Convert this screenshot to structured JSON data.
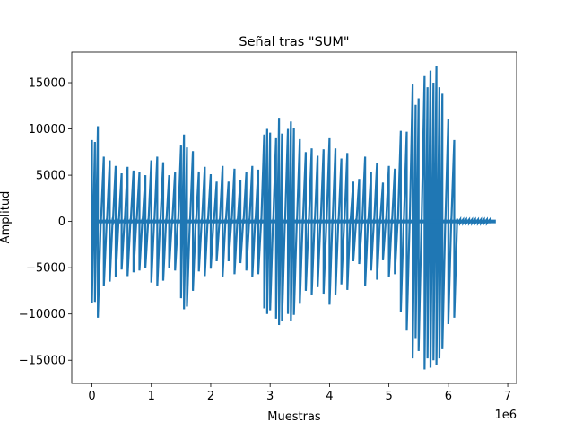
{
  "chart_data": {
    "type": "line",
    "title": "Señal tras \"SUM\"",
    "xlabel": "Muestras",
    "ylabel": "Amplitud",
    "x_offset_text": "1e6",
    "xlim": [
      -0.34,
      7.15
    ],
    "ylim": [
      -17500,
      18300
    ],
    "x_ticks": [
      0,
      1,
      2,
      3,
      4,
      5,
      6,
      7
    ],
    "x_tick_labels": [
      "0",
      "1",
      "2",
      "3",
      "4",
      "5",
      "6",
      "7"
    ],
    "y_ticks": [
      -15000,
      -10000,
      -5000,
      0,
      5000,
      10000,
      15000
    ],
    "y_tick_labels": [
      "−15000",
      "−10000",
      "−5000",
      "0",
      "5000",
      "10000",
      "15000"
    ],
    "grid": false,
    "line_color": "#1f77b4",
    "series": [
      {
        "name": "",
        "x": [
          0.0,
          0.05,
          0.1,
          0.15,
          0.2,
          0.25,
          0.3,
          0.35,
          0.4,
          0.45,
          0.5,
          0.55,
          0.6,
          0.65,
          0.7,
          0.75,
          0.8,
          0.85,
          0.9,
          0.95,
          1.0,
          1.05,
          1.1,
          1.15,
          1.2,
          1.25,
          1.3,
          1.35,
          1.4,
          1.45,
          1.5,
          1.55,
          1.6,
          1.65,
          1.7,
          1.75,
          1.8,
          1.85,
          1.9,
          1.95,
          2.0,
          2.05,
          2.1,
          2.15,
          2.2,
          2.25,
          2.3,
          2.35,
          2.4,
          2.45,
          2.5,
          2.55,
          2.6,
          2.65,
          2.7,
          2.75,
          2.8,
          2.85,
          2.9,
          2.95,
          3.0,
          3.05,
          3.1,
          3.15,
          3.2,
          3.25,
          3.3,
          3.35,
          3.4,
          3.45,
          3.5,
          3.55,
          3.6,
          3.65,
          3.7,
          3.75,
          3.8,
          3.85,
          3.9,
          3.95,
          4.0,
          4.05,
          4.1,
          4.15,
          4.2,
          4.25,
          4.3,
          4.35,
          4.4,
          4.45,
          4.5,
          4.55,
          4.6,
          4.65,
          4.7,
          4.75,
          4.8,
          4.85,
          4.9,
          4.95,
          5.0,
          5.05,
          5.1,
          5.15,
          5.2,
          5.25,
          5.3,
          5.35,
          5.4,
          5.45,
          5.5,
          5.55,
          5.6,
          5.65,
          5.7,
          5.75,
          5.8,
          5.85,
          5.9,
          5.95,
          6.0,
          6.05,
          6.1,
          6.15,
          6.2,
          6.25,
          6.3,
          6.35,
          6.4,
          6.45,
          6.5,
          6.55,
          6.6,
          6.65,
          6.7,
          6.75,
          6.8
        ],
        "max": [
          8800,
          8600,
          10300,
          300,
          7000,
          300,
          6600,
          400,
          6000,
          300,
          5200,
          300,
          5900,
          300,
          5500,
          300,
          5300,
          300,
          5000,
          300,
          6600,
          300,
          7000,
          300,
          6400,
          300,
          5000,
          300,
          5300,
          300,
          8200,
          9400,
          8000,
          300,
          7600,
          300,
          5400,
          300,
          5900,
          300,
          5100,
          300,
          4300,
          300,
          6000,
          300,
          4300,
          300,
          5700,
          300,
          4500,
          300,
          5300,
          300,
          6000,
          300,
          5600,
          300,
          9400,
          10000,
          9600,
          300,
          9000,
          11200,
          9500,
          300,
          10000,
          10800,
          10100,
          300,
          8900,
          300,
          7500,
          300,
          7900,
          300,
          7100,
          300,
          7800,
          300,
          9000,
          300,
          7900,
          300,
          6800,
          300,
          7400,
          300,
          4300,
          300,
          4600,
          300,
          7000,
          300,
          5300,
          300,
          6300,
          300,
          4200,
          300,
          6000,
          300,
          5700,
          300,
          9800,
          300,
          9700,
          300,
          14800,
          12600,
          13300,
          300,
          15700,
          14500,
          16300,
          15000,
          16800,
          14500,
          13800,
          300,
          11100,
          300,
          8800,
          300,
          200,
          200,
          200,
          200,
          200,
          200,
          200,
          200,
          200,
          200,
          200
        ],
        "min": [
          -8800,
          -8700,
          -10400,
          -300,
          -7000,
          -300,
          -6500,
          -400,
          -6000,
          -300,
          -5200,
          -300,
          -5900,
          -300,
          -5500,
          -300,
          -5300,
          -300,
          -5000,
          -300,
          -6600,
          -300,
          -7000,
          -300,
          -6400,
          -300,
          -5000,
          -300,
          -5300,
          -300,
          -8300,
          -9500,
          -9200,
          -300,
          -7500,
          -300,
          -5400,
          -300,
          -5900,
          -300,
          -5100,
          -300,
          -4300,
          -300,
          -6000,
          -300,
          -4300,
          -300,
          -5700,
          -300,
          -4500,
          -300,
          -5300,
          -300,
          -6000,
          -300,
          -5700,
          -300,
          -9400,
          -10000,
          -9600,
          -300,
          -10500,
          -11200,
          -10800,
          -300,
          -10000,
          -10800,
          -10100,
          -300,
          -8900,
          -300,
          -7500,
          -300,
          -7900,
          -300,
          -7100,
          -300,
          -7800,
          -300,
          -9000,
          -300,
          -7900,
          -300,
          -6800,
          -300,
          -7400,
          -300,
          -4300,
          -300,
          -4600,
          -300,
          -7000,
          -300,
          -5300,
          -300,
          -6300,
          -300,
          -4200,
          -300,
          -6000,
          -300,
          -5700,
          -300,
          -9800,
          -300,
          -11800,
          -300,
          -14800,
          -12600,
          -14000,
          -300,
          -16000,
          -14800,
          -15800,
          -15000,
          -15500,
          -14800,
          -13800,
          -300,
          -11100,
          -300,
          -10400,
          -300,
          -200,
          -200,
          -200,
          -200,
          -200,
          -200,
          -200,
          -200,
          -200,
          -200,
          -200
        ]
      }
    ]
  }
}
